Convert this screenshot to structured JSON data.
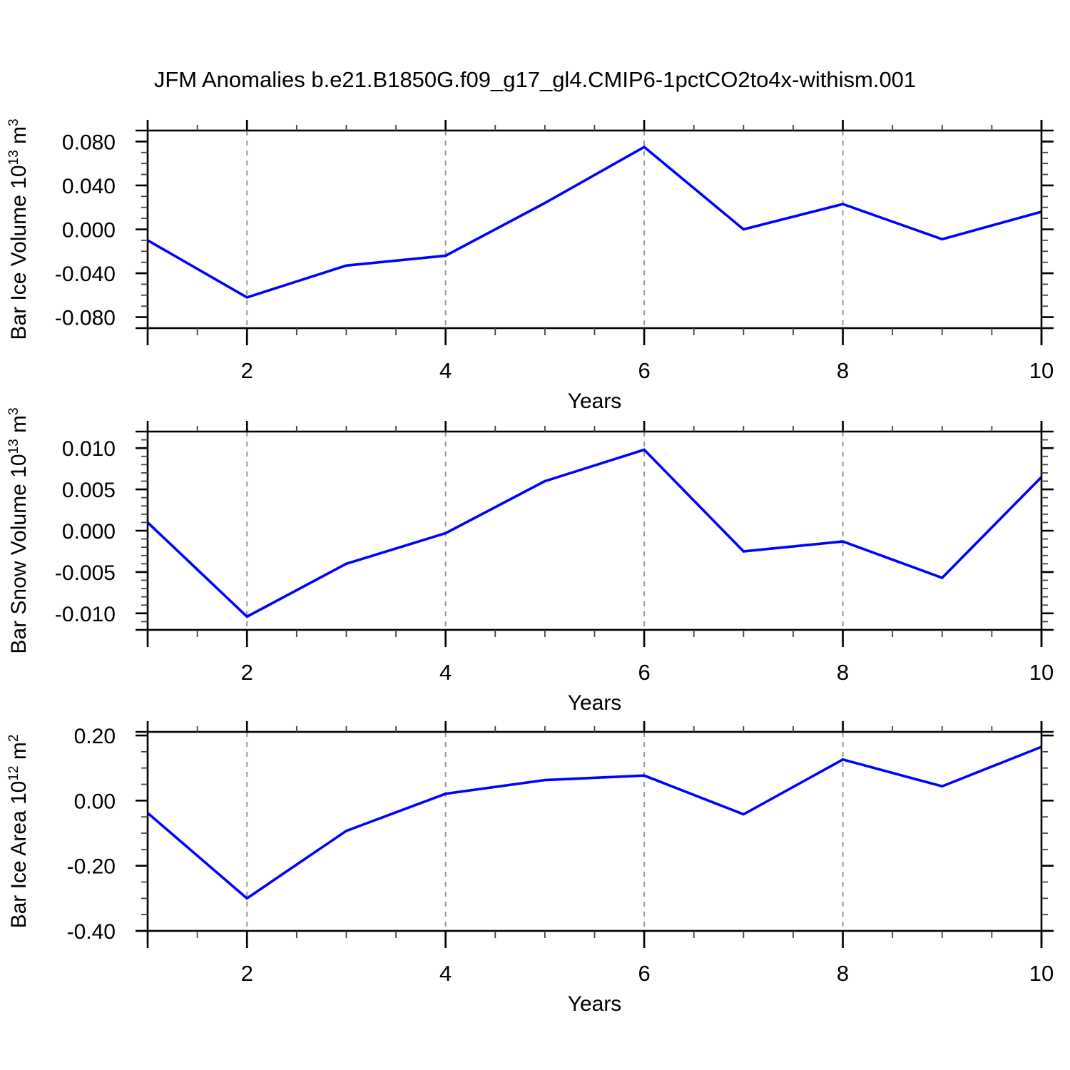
{
  "title": "JFM Anomalies b.e21.B1850G.f09_g17_gl4.CMIP6-1pctCO2to4x-withism.001",
  "style": {
    "line_color": "#0000ff",
    "grid_color": "#999999",
    "axis_color": "#000000",
    "minor_tick_color": "#444444",
    "background": "#ffffff"
  },
  "chart_data": [
    {
      "type": "line",
      "panel": "top",
      "ylabel": "Bar Ice Volume 10^{13} m^{3}",
      "xlabel": "Years",
      "x": [
        1,
        2,
        3,
        4,
        5,
        6,
        7,
        8,
        9,
        10
      ],
      "values": [
        -0.01,
        -0.062,
        -0.033,
        -0.024,
        0.024,
        0.075,
        0.0,
        0.023,
        -0.009,
        0.016
      ],
      "xlim": [
        1,
        10
      ],
      "ylim": [
        -0.09,
        0.09
      ],
      "xticks": [
        {
          "v": 2,
          "label": "2"
        },
        {
          "v": 4,
          "label": "4"
        },
        {
          "v": 6,
          "label": "6"
        },
        {
          "v": 8,
          "label": "8"
        },
        {
          "v": 10,
          "label": "10"
        }
      ],
      "x_minor_step": 0.5,
      "yticks": [
        {
          "v": 0.08,
          "label": "0.080"
        },
        {
          "v": 0.04,
          "label": "0.040"
        },
        {
          "v": 0.0,
          "label": "0.000"
        },
        {
          "v": -0.04,
          "label": "-0.040"
        },
        {
          "v": -0.08,
          "label": "-0.080"
        }
      ],
      "y_minor_step": 0.01,
      "grid_x": [
        2,
        4,
        6,
        8
      ],
      "grid_on": true,
      "legend": "none"
    },
    {
      "type": "line",
      "panel": "middle",
      "ylabel": "Bar Snow Volume 10^{13} m^{3}",
      "xlabel": "Years",
      "x": [
        1,
        2,
        3,
        4,
        5,
        6,
        7,
        8,
        9,
        10
      ],
      "values": [
        0.001,
        -0.0104,
        -0.004,
        -0.0003,
        0.006,
        0.0098,
        -0.0025,
        -0.0013,
        -0.0057,
        0.0065
      ],
      "xlim": [
        1,
        10
      ],
      "ylim": [
        -0.012,
        0.012
      ],
      "xticks": [
        {
          "v": 2,
          "label": "2"
        },
        {
          "v": 4,
          "label": "4"
        },
        {
          "v": 6,
          "label": "6"
        },
        {
          "v": 8,
          "label": "8"
        },
        {
          "v": 10,
          "label": "10"
        }
      ],
      "x_minor_step": 0.5,
      "yticks": [
        {
          "v": 0.01,
          "label": "0.010"
        },
        {
          "v": 0.005,
          "label": "0.005"
        },
        {
          "v": 0.0,
          "label": "0.000"
        },
        {
          "v": -0.005,
          "label": "-0.005"
        },
        {
          "v": -0.01,
          "label": "-0.010"
        }
      ],
      "y_minor_step": 0.001,
      "grid_x": [
        2,
        4,
        6,
        8
      ],
      "grid_on": true,
      "legend": "none"
    },
    {
      "type": "line",
      "panel": "bottom",
      "ylabel": "Bar Ice Area 10^{12} m^{2}",
      "xlabel": "Years",
      "x": [
        1,
        2,
        3,
        4,
        5,
        6,
        7,
        8,
        9,
        10
      ],
      "values": [
        -0.038,
        -0.3,
        -0.093,
        0.021,
        0.063,
        0.077,
        -0.042,
        0.126,
        0.044,
        0.165
      ],
      "xlim": [
        1,
        10
      ],
      "ylim": [
        -0.4,
        0.211
      ],
      "xticks": [
        {
          "v": 2,
          "label": "2"
        },
        {
          "v": 4,
          "label": "4"
        },
        {
          "v": 6,
          "label": "6"
        },
        {
          "v": 8,
          "label": "8"
        },
        {
          "v": 10,
          "label": "10"
        }
      ],
      "x_minor_step": 0.5,
      "yticks": [
        {
          "v": 0.2,
          "label": "0.20"
        },
        {
          "v": 0.0,
          "label": "0.00"
        },
        {
          "v": -0.2,
          "label": "-0.20"
        },
        {
          "v": -0.4,
          "label": "-0.40"
        }
      ],
      "y_minor_step": 0.05,
      "grid_x": [
        2,
        4,
        6,
        8
      ],
      "grid_on": true,
      "legend": "none"
    }
  ]
}
